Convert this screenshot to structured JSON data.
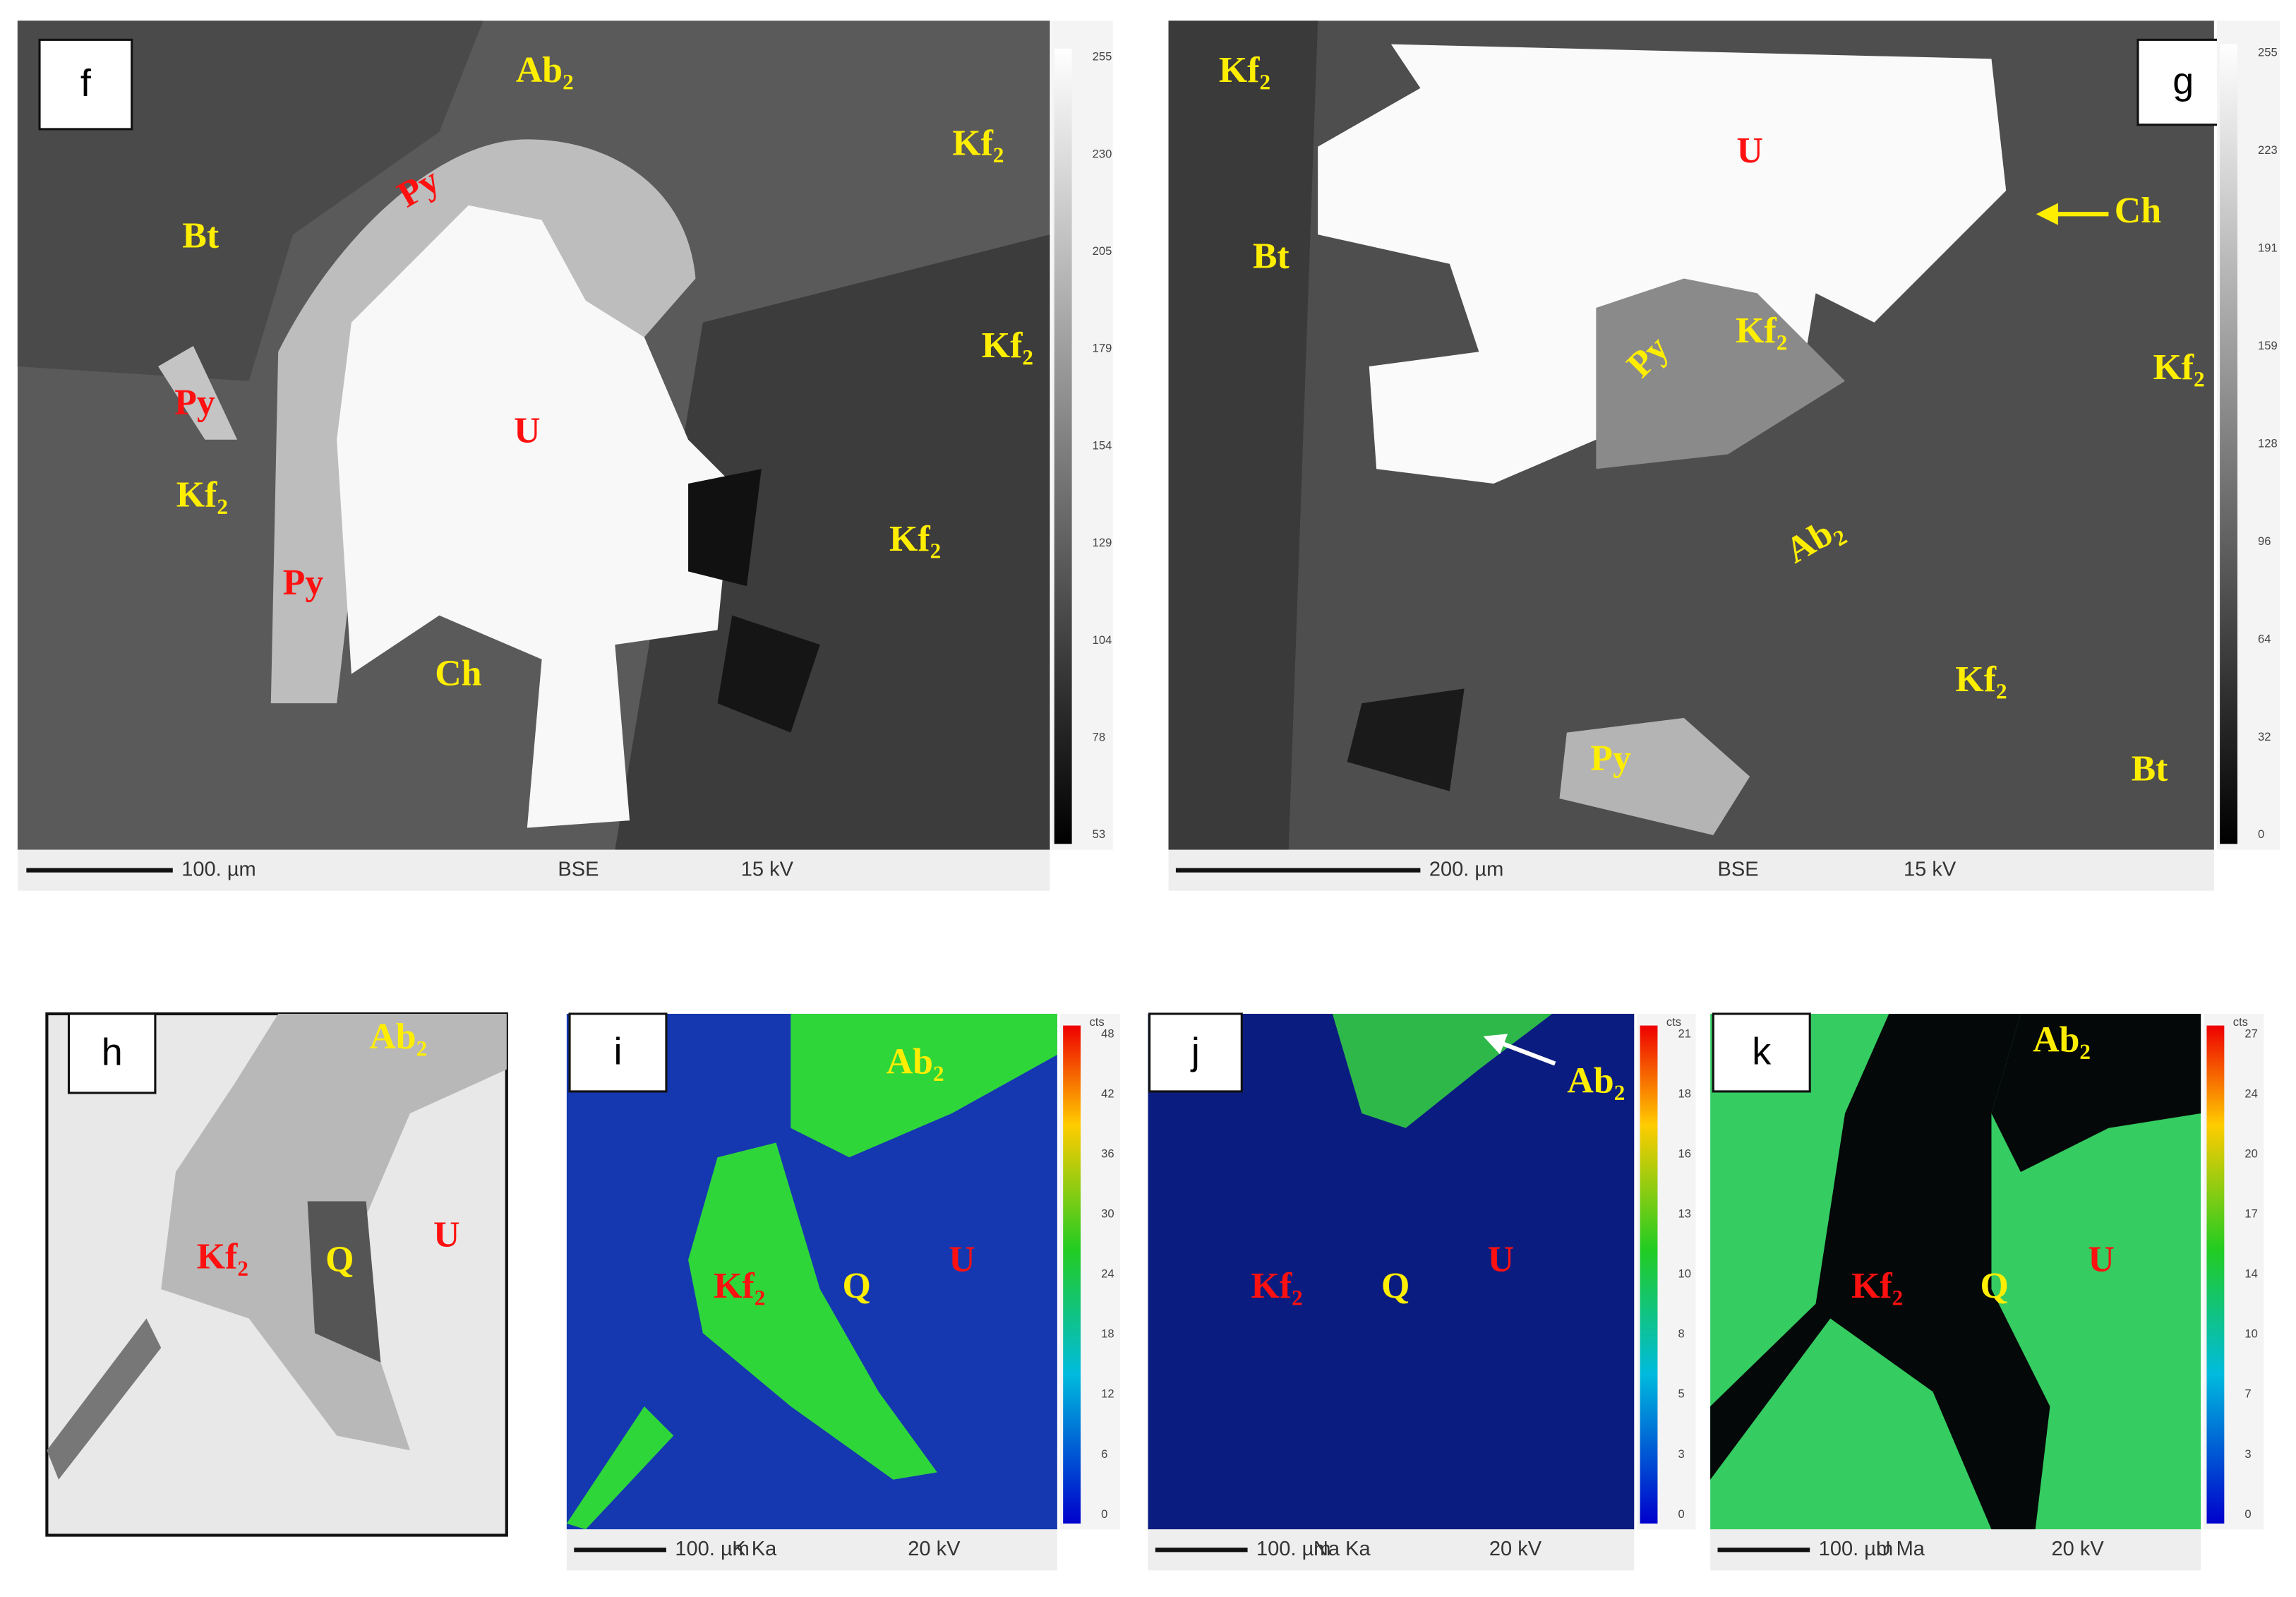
{
  "panels": [
    {
      "letter": "f",
      "labels": [
        "Ab₂",
        "Kf₂",
        "Bt",
        "Py",
        "Py",
        "Kf₂",
        "U",
        "Kf₂",
        "Kf₂",
        "Py",
        "Ch"
      ],
      "colorbar": {
        "ticks": [
          255,
          230,
          205,
          179,
          154,
          129,
          104,
          78,
          53
        ]
      },
      "footer": {
        "scale": "100. µm",
        "mode": "BSE",
        "voltage": "15 kV"
      }
    },
    {
      "letter": "g",
      "labels": [
        "Kf₂",
        "U",
        "Ch",
        "Bt",
        "Kf₂",
        "Py",
        "Kf₂",
        "Ab₂",
        "Kf₂",
        "Py",
        "Bt"
      ],
      "colorbar": {
        "ticks": [
          255,
          223,
          191,
          159,
          128,
          96,
          64,
          32,
          0
        ]
      },
      "footer": {
        "scale": "200. µm",
        "mode": "BSE",
        "voltage": "15 kV"
      }
    },
    {
      "letter": "h",
      "labels": [
        "Ab₂",
        "Kf₂",
        "Q",
        "U"
      ]
    },
    {
      "letter": "i",
      "labels": [
        "Ab₂",
        "Kf₂",
        "Q",
        "U"
      ],
      "colorbar": {
        "unit": "cts",
        "ticks": [
          48,
          42,
          36,
          30,
          24,
          18,
          12,
          6,
          0
        ]
      },
      "footer": {
        "scale": "100. µm",
        "mode": "K Ka",
        "voltage": "20 kV"
      }
    },
    {
      "letter": "j",
      "labels": [
        "Ab₂",
        "Kf₂",
        "Q",
        "U"
      ],
      "colorbar": {
        "unit": "cts",
        "ticks": [
          21,
          18,
          16,
          13,
          10,
          8,
          5,
          3,
          0
        ]
      },
      "footer": {
        "scale": "100. µm",
        "mode": "Na Ka",
        "voltage": "20 kV"
      }
    },
    {
      "letter": "k",
      "labels": [
        "Ab₂",
        "Kf₂",
        "Q",
        "U"
      ],
      "colorbar": {
        "unit": "cts",
        "ticks": [
          27,
          24,
          20,
          17,
          14,
          10,
          7,
          3,
          0
        ]
      },
      "footer": {
        "scale": "100. µm",
        "mode": "U Ma",
        "voltage": "20 kV"
      }
    }
  ]
}
